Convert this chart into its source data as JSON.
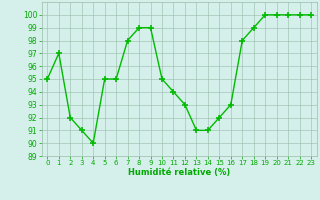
{
  "x": [
    0,
    1,
    2,
    3,
    4,
    5,
    6,
    7,
    8,
    9,
    10,
    11,
    12,
    13,
    14,
    15,
    16,
    17,
    18,
    19,
    20,
    21,
    22,
    23
  ],
  "y": [
    95,
    97,
    92,
    91,
    90,
    95,
    95,
    98,
    99,
    99,
    95,
    94,
    93,
    91,
    91,
    92,
    93,
    98,
    99,
    100,
    100,
    100,
    100,
    100
  ],
  "line_color": "#00bb00",
  "marker_color": "#00bb00",
  "bg_color": "#d5f0ea",
  "grid_color": "#99bbaa",
  "xlabel": "Humidité relative (%)",
  "xlabel_color": "#00aa00",
  "tick_label_color": "#00aa00",
  "ylim": [
    89,
    101
  ],
  "yticks": [
    89,
    90,
    91,
    92,
    93,
    94,
    95,
    96,
    97,
    98,
    99,
    100
  ],
  "xticks": [
    0,
    1,
    2,
    3,
    4,
    5,
    6,
    7,
    8,
    9,
    10,
    11,
    12,
    13,
    14,
    15,
    16,
    17,
    18,
    19,
    20,
    21,
    22,
    23
  ],
  "line_width": 1.0,
  "marker_size": 4.0
}
